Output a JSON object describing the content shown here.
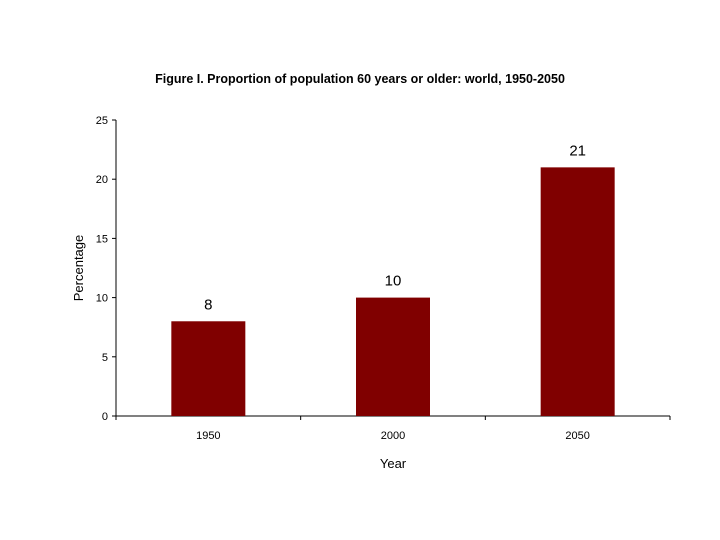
{
  "chart_data": {
    "type": "bar",
    "title": "Figure I. Proportion of population 60 years or older: world, 1950-2050",
    "xlabel": "Year",
    "ylabel": "Percentage",
    "categories": [
      "1950",
      "2000",
      "2050"
    ],
    "values": [
      8,
      10,
      21
    ],
    "data_labels": [
      "8",
      "10",
      "21"
    ],
    "ylim": [
      0,
      25
    ],
    "yticks": [
      0,
      5,
      10,
      15,
      20,
      25
    ],
    "ytick_labels": [
      "0",
      "5",
      "10",
      "15",
      "20",
      "25"
    ],
    "bar_color": "#800000",
    "grid": false,
    "legend": "none"
  }
}
